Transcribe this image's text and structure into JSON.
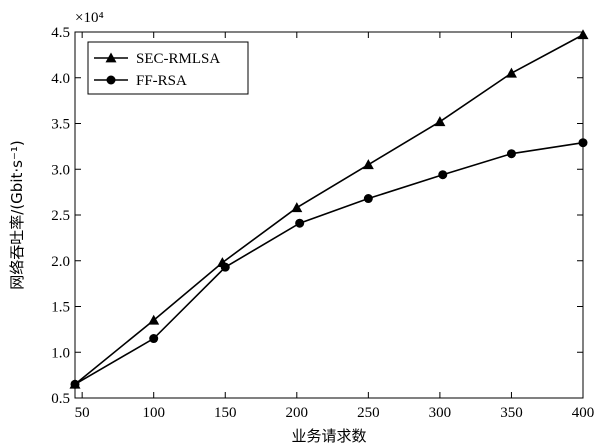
{
  "chart_data": {
    "type": "line",
    "xlabel": "业务请求数",
    "ylabel": "网络吞吐率/(Gbit·s⁻¹)",
    "y_multiplier_label": "×10⁴",
    "x_ticks": [
      50,
      100,
      150,
      200,
      250,
      300,
      350,
      400
    ],
    "y_ticks": [
      0.5,
      1.0,
      1.5,
      2.0,
      2.5,
      3.0,
      3.5,
      4.0,
      4.5
    ],
    "xlim": [
      45,
      400
    ],
    "ylim": [
      0.5,
      4.5
    ],
    "grid": false,
    "legend_position": "top-left",
    "series": [
      {
        "name": "SEC-RMLSA",
        "marker": "triangle",
        "x": [
          45,
          100,
          148,
          200,
          250,
          300,
          350,
          400
        ],
        "values": [
          0.65,
          1.35,
          1.98,
          2.58,
          3.05,
          3.52,
          4.05,
          4.47
        ]
      },
      {
        "name": "FF-RSA",
        "marker": "circle",
        "x": [
          45,
          100,
          150,
          202,
          250,
          302,
          350,
          400
        ],
        "values": [
          0.65,
          1.15,
          1.93,
          2.41,
          2.68,
          2.94,
          3.17,
          3.29
        ]
      }
    ]
  }
}
